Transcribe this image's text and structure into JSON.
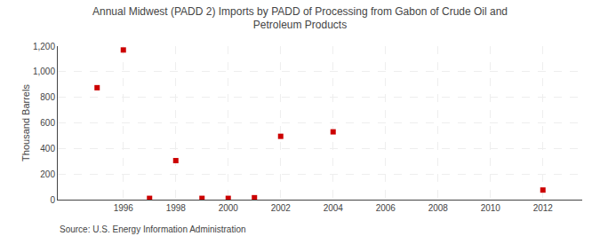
{
  "chart_data": {
    "type": "scatter",
    "title": "Annual Midwest (PADD 2) Imports by PADD of Processing from Gabon of Crude Oil and\nPetroleum Products",
    "ylabel": "Thousand Barrels",
    "annotations": [
      "Source: U.S. Energy Information Administration"
    ],
    "x": [
      1995,
      1996,
      1997,
      1998,
      1999,
      2000,
      2001,
      2002,
      2004,
      2012
    ],
    "values": [
      875,
      1170,
      10,
      305,
      10,
      10,
      15,
      495,
      530,
      75
    ],
    "color": "#cc0000",
    "marker": "square",
    "xlim": [
      1993.5,
      2013.5
    ],
    "xticks": [
      1996,
      1998,
      2000,
      2002,
      2004,
      2006,
      2008,
      2010,
      2012
    ],
    "ylim": [
      0,
      1200
    ],
    "yticks": [
      0,
      200,
      400,
      600,
      800,
      {
        "value": 1000,
        "label": "1,000"
      },
      {
        "value": 1200,
        "label": "1,200"
      }
    ],
    "grid": true
  }
}
